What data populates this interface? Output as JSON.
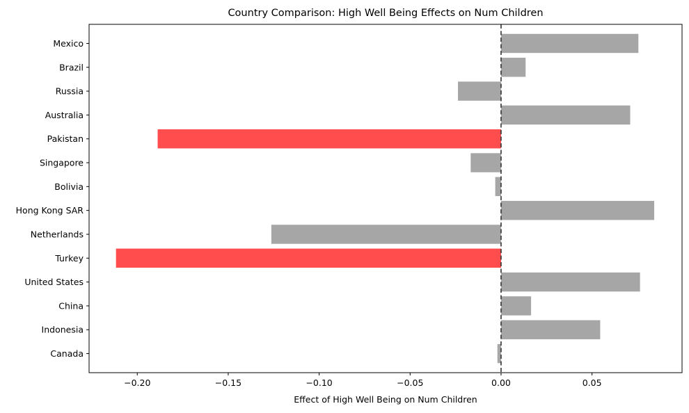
{
  "chart_data": {
    "type": "bar",
    "orientation": "horizontal",
    "title": "Country Comparison: High Well Being Effects on Num Children",
    "xlabel": "Effect of High Well Being on Num Children",
    "ylabel": "",
    "xlim": [
      -0.2265,
      0.0995
    ],
    "xticks": [
      -0.2,
      -0.15,
      -0.1,
      -0.05,
      0.0,
      0.05
    ],
    "xtick_labels": [
      "−0.20",
      "−0.15",
      "−0.10",
      "−0.05",
      "0.00",
      "0.05"
    ],
    "categories": [
      "Mexico",
      "Brazil",
      "Russia",
      "Australia",
      "Pakistan",
      "Singapore",
      "Bolivia",
      "Hong Kong SAR",
      "Netherlands",
      "Turkey",
      "United States",
      "China",
      "Indonesia",
      "Canada"
    ],
    "values": [
      0.0755,
      0.0135,
      -0.0237,
      0.071,
      -0.1888,
      -0.0167,
      -0.0032,
      0.0842,
      -0.1263,
      -0.2117,
      0.0764,
      0.0165,
      0.0545,
      -0.002
    ],
    "colors": [
      "#a6a6a6",
      "#a6a6a6",
      "#a6a6a6",
      "#a6a6a6",
      "#ff4c4c",
      "#a6a6a6",
      "#a6a6a6",
      "#a6a6a6",
      "#a6a6a6",
      "#ff4c4c",
      "#a6a6a6",
      "#a6a6a6",
      "#a6a6a6",
      "#a6a6a6"
    ],
    "reference_line": {
      "x": 0,
      "style": "dashed",
      "color": "#333333"
    },
    "grid": false,
    "legend": "none"
  }
}
